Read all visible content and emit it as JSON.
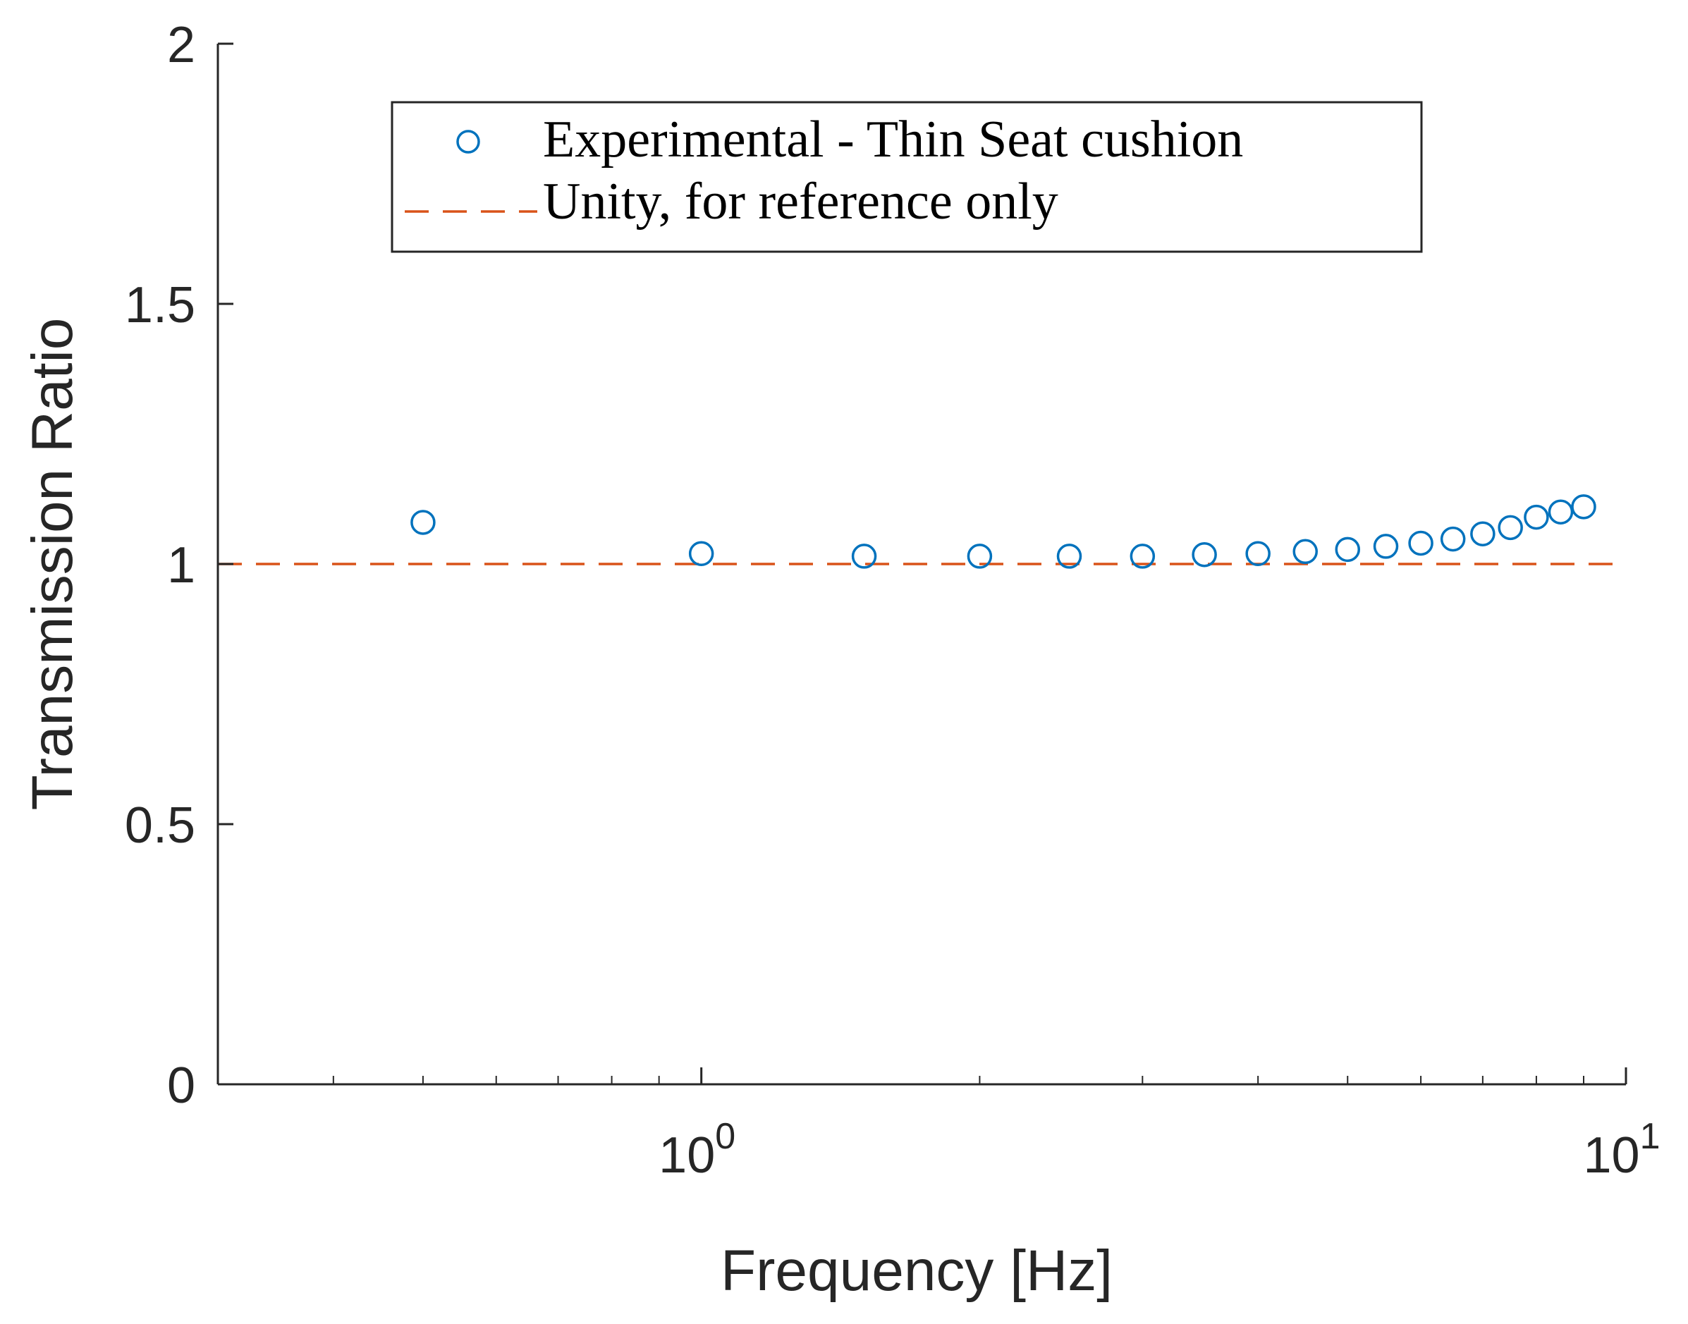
{
  "chart_data": {
    "type": "scatter",
    "title": "",
    "xlabel": "Frequency [Hz]",
    "ylabel": "Transmission Ratio",
    "xscale": "log",
    "xlim": [
      0.3,
      10
    ],
    "ylim": [
      0,
      2
    ],
    "y_ticks": [
      "0",
      "0.5",
      "1",
      "1.5",
      "2"
    ],
    "x_ticks": [
      {
        "base": "10",
        "exponent": "0"
      },
      {
        "base": "10",
        "exponent": "1"
      }
    ],
    "grid": false,
    "legend_position": "top",
    "series": [
      {
        "name": "Experimental - Thin Seat cushion",
        "marker": "circle",
        "color": "#0072BD",
        "x": [
          0.5,
          1.0,
          1.5,
          2.0,
          2.5,
          3.0,
          3.5,
          4.0,
          4.5,
          5.0,
          5.5,
          6.0,
          6.5,
          7.0,
          7.5,
          8.0,
          8.5,
          9.0
        ],
        "y": [
          1.08,
          1.02,
          1.015,
          1.015,
          1.015,
          1.015,
          1.018,
          1.02,
          1.024,
          1.028,
          1.034,
          1.04,
          1.048,
          1.058,
          1.07,
          1.09,
          1.1,
          1.11
        ]
      },
      {
        "name": "Unity, for reference only",
        "style": "dashed",
        "color": "#D95319",
        "x": [
          0.3,
          10
        ],
        "y": [
          1,
          1
        ]
      }
    ]
  }
}
